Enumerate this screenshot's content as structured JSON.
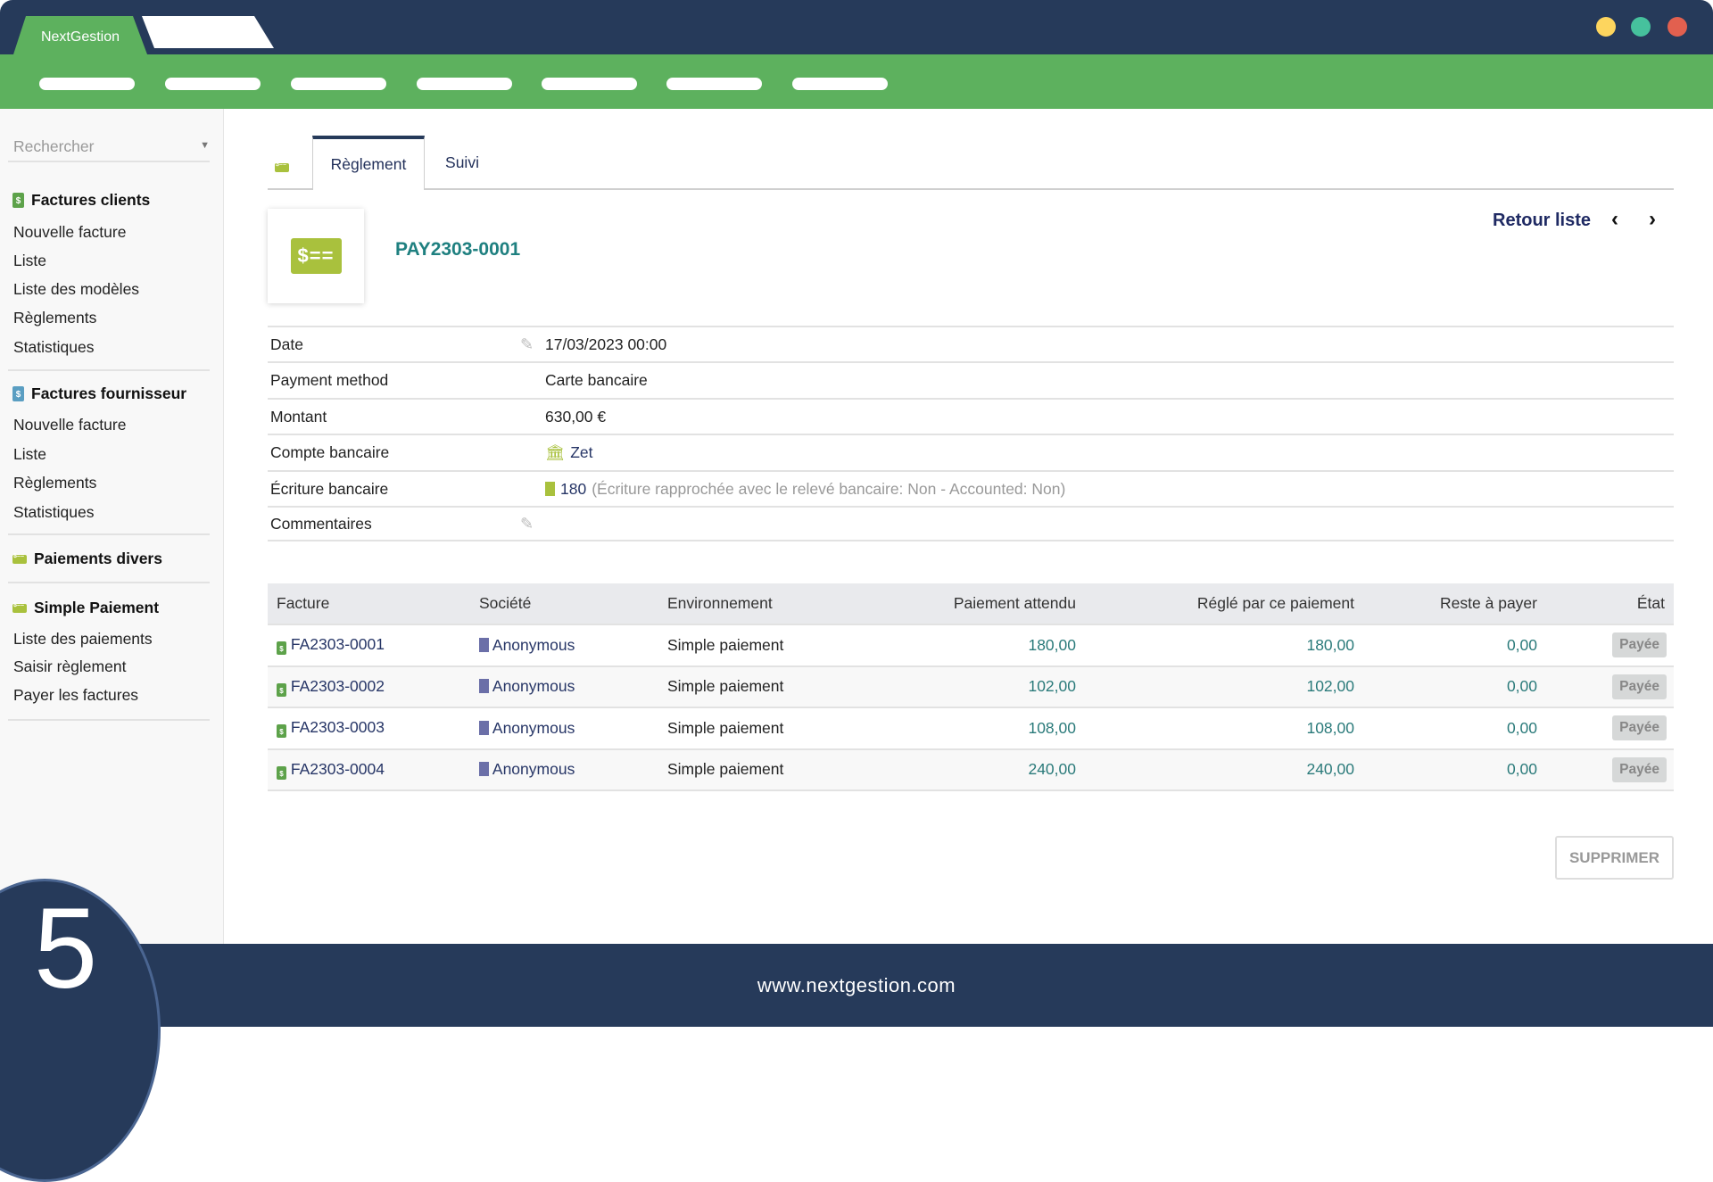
{
  "window": {
    "app_tab": "NextGestion",
    "dot_colors": [
      "#fdd55e",
      "#46c19d",
      "#e2604f"
    ]
  },
  "sidebar": {
    "search_placeholder": "Rechercher",
    "sections": [
      {
        "title": "Factures clients",
        "items": [
          "Nouvelle facture",
          "Liste",
          "Liste des modèles",
          "Règlements",
          "Statistiques"
        ]
      },
      {
        "title": "Factures fournisseur",
        "items": [
          "Nouvelle facture",
          "Liste",
          "Règlements",
          "Statistiques"
        ]
      },
      {
        "title": "Paiements divers",
        "items": []
      },
      {
        "title": "Simple Paiement",
        "items": [
          "Liste des paiements",
          "Saisir règlement",
          "Payer les factures"
        ]
      }
    ]
  },
  "tabs": [
    "Règlement",
    "Suivi"
  ],
  "header": {
    "ref": "PAY2303-0001",
    "back": "Retour liste"
  },
  "details": [
    {
      "label": "Date",
      "value": "17/03/2023 00:00"
    },
    {
      "label": "Payment method",
      "value": "Carte bancaire"
    },
    {
      "label": "Montant",
      "value": "630,00 €"
    },
    {
      "label": "Compte bancaire",
      "value": "Zet"
    },
    {
      "label": "Écriture bancaire",
      "value": "180",
      "note": "(Écriture rapprochée avec le relevé bancaire: Non - Accounted: Non)"
    },
    {
      "label": "Commentaires",
      "value": ""
    }
  ],
  "table": {
    "headers": [
      "Facture",
      "Société",
      "Environnement",
      "Paiement attendu",
      "Réglé par ce paiement",
      "Reste à payer",
      "État"
    ],
    "rows": [
      [
        "FA2303-0001",
        "Anonymous",
        "Simple paiement",
        "180,00",
        "180,00",
        "0,00",
        "Payée"
      ],
      [
        "FA2303-0002",
        "Anonymous",
        "Simple paiement",
        "102,00",
        "102,00",
        "0,00",
        "Payée"
      ],
      [
        "FA2303-0003",
        "Anonymous",
        "Simple paiement",
        "108,00",
        "108,00",
        "0,00",
        "Payée"
      ],
      [
        "FA2303-0004",
        "Anonymous",
        "Simple paiement",
        "240,00",
        "240,00",
        "0,00",
        "Payée"
      ]
    ]
  },
  "delete_label": "SUPPRIMER",
  "footer": {
    "url": "www.nextgestion.com",
    "step": "5"
  },
  "colors": {
    "navy": "#263a5a",
    "green": "#5db15e",
    "lime": "#a9c13d",
    "teal": "#2a8a8a"
  }
}
